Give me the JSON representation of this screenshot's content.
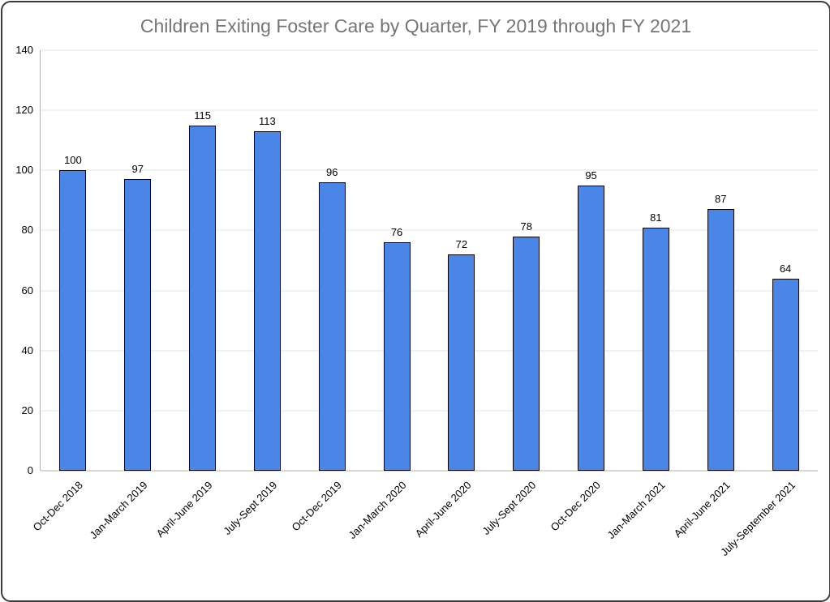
{
  "frame": {
    "background": "#ffffff",
    "border_color": "#3c3c3c"
  },
  "chart_data": {
    "type": "bar",
    "title": "Children Exiting Foster Care by Quarter, FY 2019 through FY 2021",
    "categories": [
      "Oct-Dec 2018",
      "Jan-March 2019",
      "April-June 2019",
      "July-Sept 2019",
      "Oct-Dec 2019",
      "Jan-March 2020",
      "April-June 2020",
      "July-Sept 2020",
      "Oct-Dec 2020",
      "Jan-March 2021",
      "April-June 2021",
      "July-September 2021"
    ],
    "values": [
      100,
      97,
      115,
      113,
      96,
      76,
      72,
      78,
      95,
      81,
      87,
      64
    ],
    "xlabel": "",
    "ylabel": "",
    "ylim": [
      0,
      140
    ],
    "yticks": [
      0,
      20,
      40,
      60,
      80,
      100,
      120,
      140
    ],
    "grid": true,
    "legend_position": "none",
    "data_labels_shown": true,
    "x_label_rotation_deg": 45,
    "colors": {
      "bar_fill": "#4a86e8",
      "bar_border": "#000000",
      "title_text": "#757575",
      "axis_text": "#000000",
      "gridline": "#e6e6e6",
      "axis_line": "#b0b0b0"
    }
  }
}
